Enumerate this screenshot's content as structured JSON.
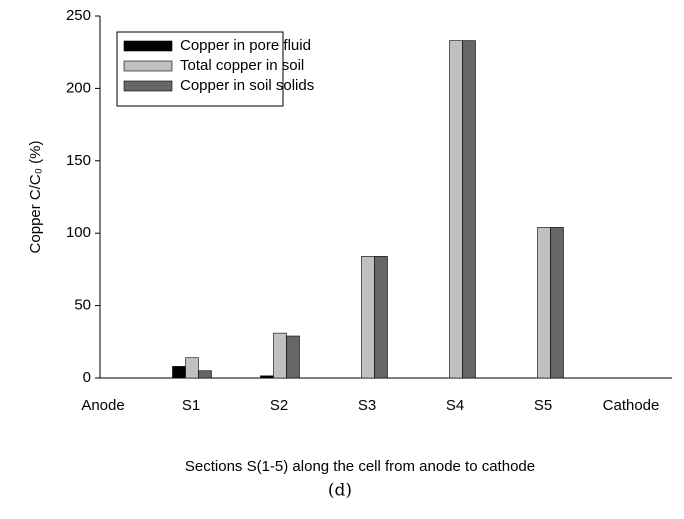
{
  "chart_data": {
    "type": "bar",
    "xlabel": "Sections S(1-5) along the cell from anode to cathode",
    "ylabel": "Copper C/C₀ (%)",
    "caption": "(d)",
    "categories": [
      "Anode",
      "S1",
      "S2",
      "S3",
      "S4",
      "S5",
      "Cathode"
    ],
    "series": [
      {
        "name": "Copper in pore fluid",
        "color": "#000000",
        "values": [
          null,
          8,
          1.5,
          0,
          0,
          0,
          null
        ]
      },
      {
        "name": "Total copper in soil",
        "color": "#c0c0c0",
        "values": [
          null,
          14,
          31,
          84,
          233,
          104,
          null
        ]
      },
      {
        "name": "Copper in soil solids",
        "color": "#666666",
        "values": [
          null,
          5,
          29,
          84,
          233,
          104,
          null
        ]
      }
    ],
    "ylim": [
      0,
      250
    ],
    "yticks": [
      0,
      50,
      100,
      150,
      200,
      250
    ],
    "grid": false,
    "legend": "upper left"
  }
}
